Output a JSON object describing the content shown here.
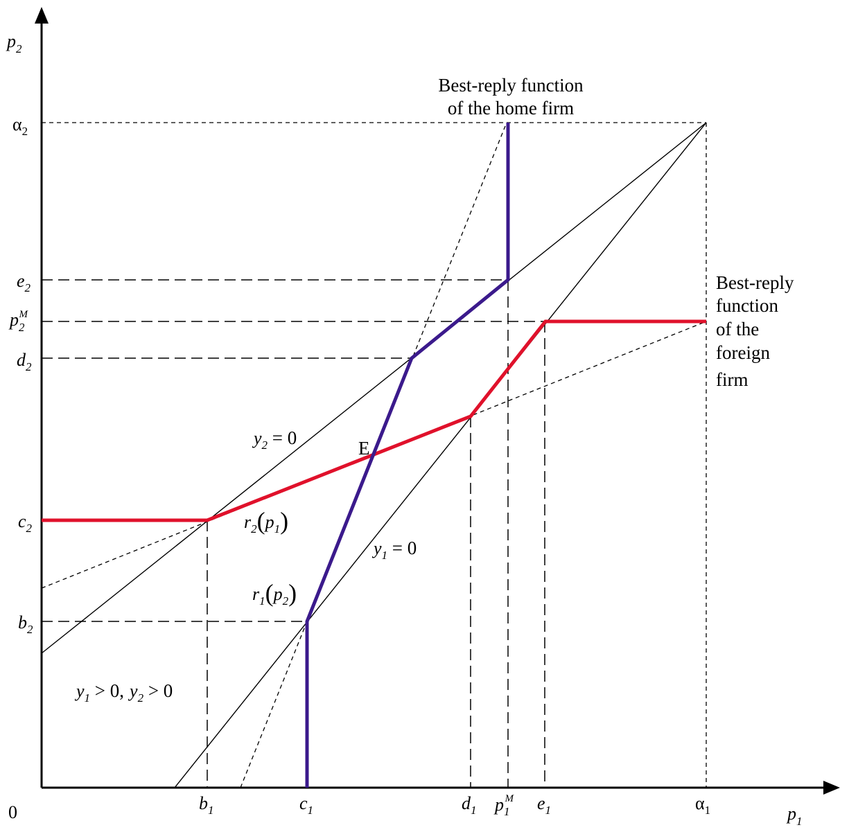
{
  "origin_label": "0",
  "axes": {
    "x": {
      "base": "p",
      "sub": "1"
    },
    "y": {
      "base": "p",
      "sub": "2"
    }
  },
  "x_ticks": [
    {
      "id": "b1",
      "base": "b",
      "sub": "1"
    },
    {
      "id": "c1",
      "base": "c",
      "sub": "1"
    },
    {
      "id": "d1",
      "base": "d",
      "sub": "1"
    },
    {
      "id": "p1M",
      "base": "p",
      "sub": "1",
      "sup": "M"
    },
    {
      "id": "e1",
      "base": "e",
      "sub": "1"
    },
    {
      "id": "alpha1",
      "base": "α",
      "sub": "1"
    }
  ],
  "y_ticks": [
    {
      "id": "alpha2",
      "base": "α",
      "sub": "2"
    },
    {
      "id": "e2",
      "base": "e",
      "sub": "2"
    },
    {
      "id": "p2M",
      "base": "p",
      "sub": "2",
      "sup": "M"
    },
    {
      "id": "d2",
      "base": "d",
      "sub": "2"
    },
    {
      "id": "c2",
      "base": "c",
      "sub": "2"
    },
    {
      "id": "b2",
      "base": "b",
      "sub": "2"
    }
  ],
  "annotations": {
    "home_title_line1": "Best-reply function",
    "home_title_line2": "of the home firm",
    "foreign_title_lines": [
      "Best-reply",
      "function",
      "of the",
      "foreign",
      "firm"
    ],
    "equilibrium": "E",
    "y2_zero": {
      "base": "y",
      "sub": "2",
      "rel": " = 0"
    },
    "y1_zero": {
      "base": "y",
      "sub": "1",
      "rel": " = 0"
    },
    "r2": {
      "base": "r",
      "sub": "2",
      "arg_base": "p",
      "arg_sub": "1"
    },
    "r1": {
      "base": "r",
      "sub": "1",
      "arg_base": "p",
      "arg_sub": "2"
    },
    "region": {
      "a_base": "y",
      "a_sub": "1",
      "a_rel": " > 0,",
      "b_base": "y",
      "b_sub": "2",
      "b_rel": " > 0"
    }
  },
  "colors": {
    "home_reply": "#3b1a8c",
    "foreign_reply": "#e0112b",
    "axis": "#000000"
  }
}
